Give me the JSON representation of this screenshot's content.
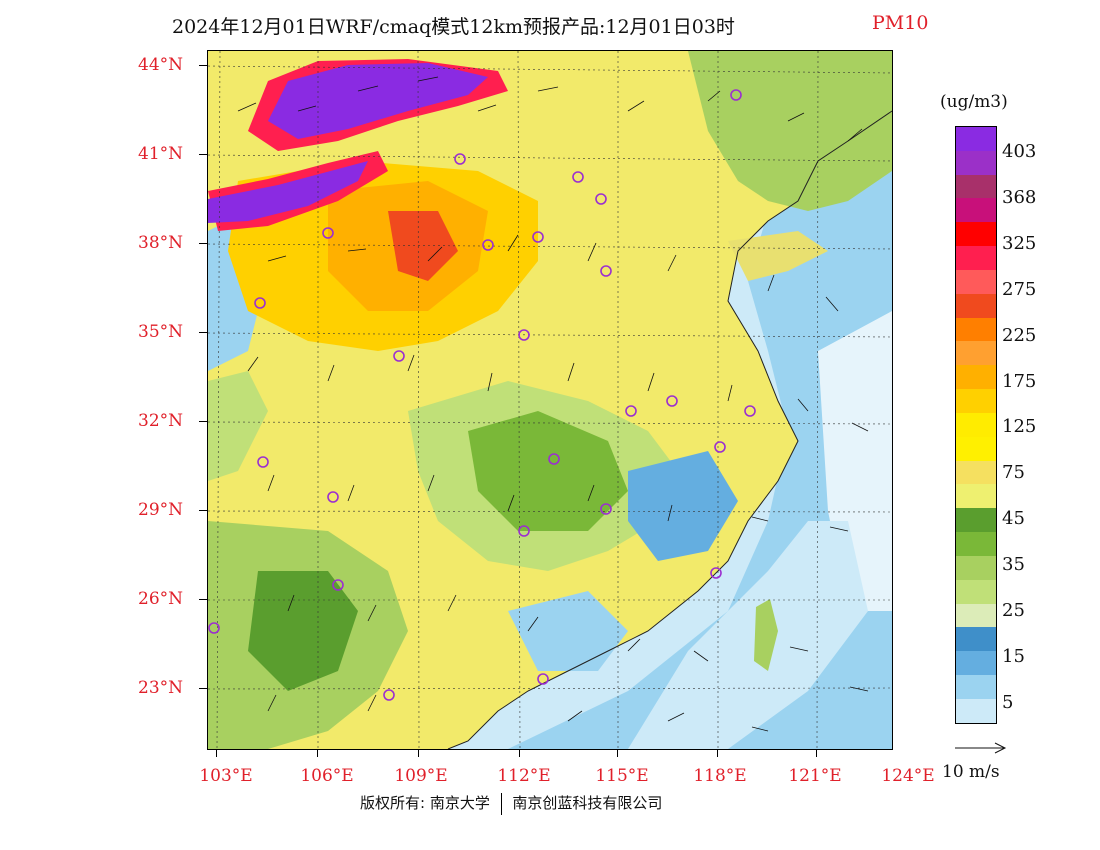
{
  "title": {
    "main": "2024年12月01日WRF/cmaq模式12km预报产品:12月01日03时",
    "pollutant": "PM10"
  },
  "axes": {
    "lat_labels": [
      "44°N",
      "41°N",
      "38°N",
      "35°N",
      "32°N",
      "29°N",
      "26°N",
      "23°N"
    ],
    "lon_labels": [
      "103°E",
      "106°E",
      "109°E",
      "112°E",
      "115°E",
      "118°E",
      "121°E",
      "124°E"
    ]
  },
  "colorbar": {
    "unit": "(ug/m3)",
    "labels": [
      "403",
      "368",
      "325",
      "275",
      "225",
      "175",
      "125",
      "75",
      "45",
      "35",
      "25",
      "15",
      "5"
    ],
    "colors": [
      "#8a2be2",
      "#9b30c8",
      "#a8306a",
      "#c8107a",
      "#ff0000",
      "#ff1f4f",
      "#ff5a5a",
      "#f04a1e",
      "#ff7f00",
      "#ffa030",
      "#ffb000",
      "#ffd000",
      "#ffec00",
      "#fff000",
      "#f5e060",
      "#eef070",
      "#5a9e2e",
      "#7ab838",
      "#a8d060",
      "#c0e078",
      "#dcecb8",
      "#3f8fc9",
      "#64aee0",
      "#9bd3f0",
      "#cdeaf8"
    ]
  },
  "vector_reference": {
    "label": "10 m/s"
  },
  "footer": {
    "copyright": "版权所有: 南京大学",
    "company": "南京创蓝科技有限公司"
  },
  "map_colors": {
    "sea": "#bfe4f3",
    "deep_sea": "#64aee0",
    "high_purple": "#8a2be2",
    "station_marker": "#9b2fd0"
  }
}
